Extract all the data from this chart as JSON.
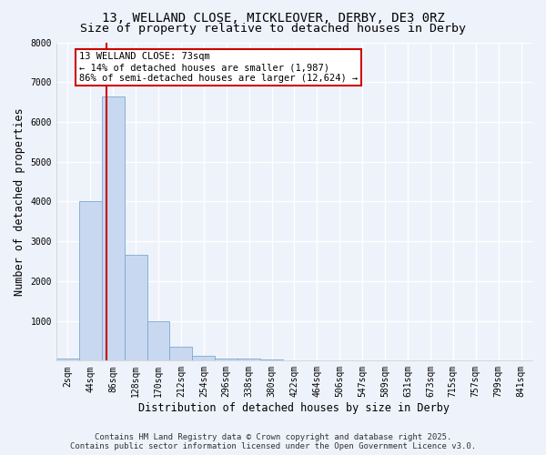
{
  "title_line1": "13, WELLAND CLOSE, MICKLEOVER, DERBY, DE3 0RZ",
  "title_line2": "Size of property relative to detached houses in Derby",
  "xlabel": "Distribution of detached houses by size in Derby",
  "ylabel": "Number of detached properties",
  "categories": [
    "2sqm",
    "44sqm",
    "86sqm",
    "128sqm",
    "170sqm",
    "212sqm",
    "254sqm",
    "296sqm",
    "338sqm",
    "380sqm",
    "422sqm",
    "464sqm",
    "506sqm",
    "547sqm",
    "589sqm",
    "631sqm",
    "673sqm",
    "715sqm",
    "757sqm",
    "799sqm",
    "841sqm"
  ],
  "values": [
    50,
    4000,
    6650,
    2650,
    1000,
    350,
    120,
    60,
    50,
    30,
    0,
    0,
    0,
    0,
    0,
    0,
    0,
    0,
    0,
    0,
    0
  ],
  "bar_color": "#c8d8f0",
  "bar_edgecolor": "#7aaad0",
  "red_line_x": 1.72,
  "highlight_color": "#cc0000",
  "annotation_text": "13 WELLAND CLOSE: 73sqm\n← 14% of detached houses are smaller (1,987)\n86% of semi-detached houses are larger (12,624) →",
  "annotation_box_color": "#ffffff",
  "annotation_box_edgecolor": "#cc0000",
  "ylim": [
    0,
    8000
  ],
  "yticks": [
    0,
    1000,
    2000,
    3000,
    4000,
    5000,
    6000,
    7000,
    8000
  ],
  "footer_line1": "Contains HM Land Registry data © Crown copyright and database right 2025.",
  "footer_line2": "Contains public sector information licensed under the Open Government Licence v3.0.",
  "bg_color": "#eef2fb",
  "grid_color": "#ffffff",
  "title_fontsize": 10,
  "subtitle_fontsize": 9.5,
  "label_fontsize": 8.5,
  "tick_fontsize": 7,
  "footer_fontsize": 6.5,
  "annotation_fontsize": 7.5
}
